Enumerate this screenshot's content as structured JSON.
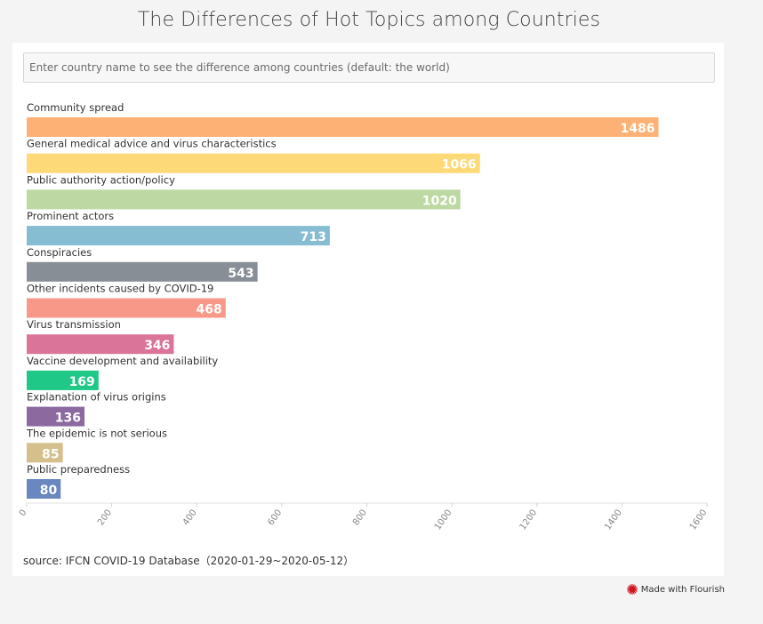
{
  "title": "The Differences of Hot Topics among Countries",
  "search": {
    "placeholder": "Enter country name to see the difference among countries (default: the world)"
  },
  "source": "source: IFCN COVID-19 Database（2020-01-29~2020-05-12）",
  "footer": {
    "made_with": "Made with Flourish"
  },
  "chart_data": {
    "type": "bar",
    "orientation": "horizontal",
    "categories": [
      "Community spread",
      "General medical advice and virus characteristics",
      "Public authority action/policy",
      "Prominent actors",
      "Conspiracies",
      "Other incidents caused by COVID-19",
      "Virus transmission",
      "Vaccine development and availability",
      "Explanation of virus origins",
      "The epidemic is not serious",
      "Public preparedness"
    ],
    "values": [
      1486,
      1066,
      1020,
      713,
      543,
      468,
      346,
      169,
      136,
      85,
      80
    ],
    "colors": [
      "#fdb174",
      "#fed978",
      "#bdd8a3",
      "#86bdd2",
      "#888e96",
      "#f79889",
      "#db7499",
      "#1fc887",
      "#8c6aa0",
      "#d5c08b",
      "#6b87c0"
    ],
    "xlim": [
      0,
      1600
    ],
    "xticks": [
      0,
      200,
      400,
      600,
      800,
      1000,
      1200,
      1400,
      1600
    ],
    "grid": false,
    "legend": "none"
  }
}
